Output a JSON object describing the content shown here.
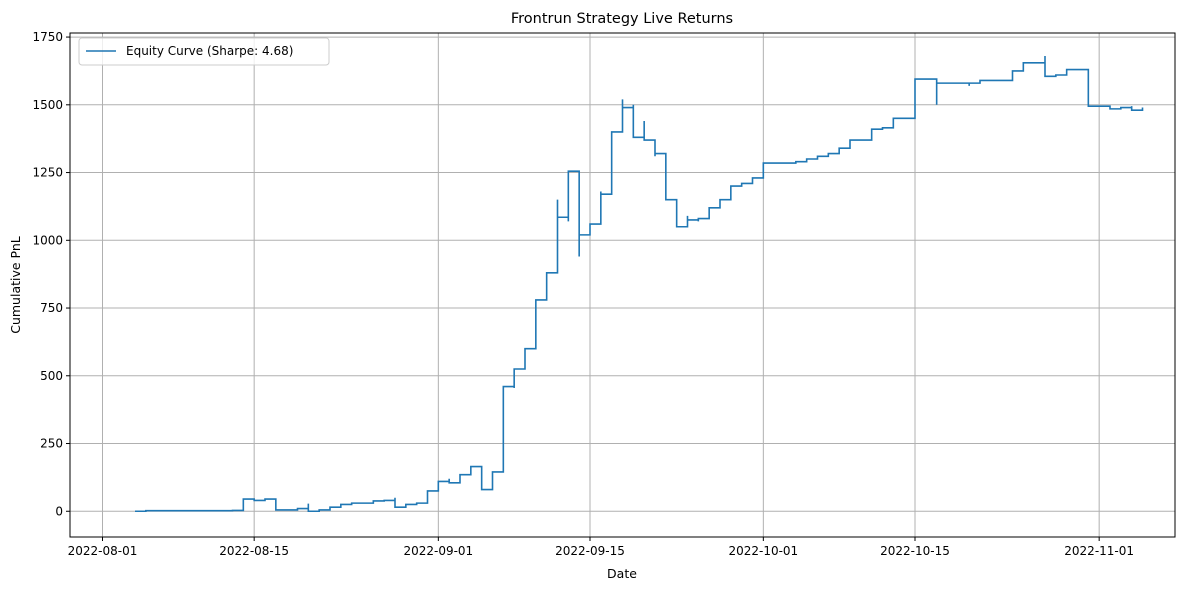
{
  "chart_data": {
    "type": "line",
    "title": "Frontrun Strategy Live Returns",
    "xlabel": "Date",
    "ylabel": "Cumulative PnL",
    "x_ticks": [
      "2022-08-01",
      "2022-08-15",
      "2022-09-01",
      "2022-09-15",
      "2022-10-01",
      "2022-10-15",
      "2022-11-01"
    ],
    "y_ticks": [
      0,
      250,
      500,
      750,
      1000,
      1250,
      1500,
      1750
    ],
    "xlim": [
      "2022-07-29",
      "2022-11-08"
    ],
    "ylim": [
      -95,
      1765
    ],
    "grid": true,
    "legend_position": "top-left",
    "colors": {
      "series": "#1f77b4",
      "grid": "#b0b0b0"
    },
    "series": [
      {
        "name": "Equity Curve (Sharpe: 4.68)",
        "points": [
          [
            "2022-08-04",
            0
          ],
          [
            "2022-08-05",
            2
          ],
          [
            "2022-08-08",
            2
          ],
          [
            "2022-08-11",
            2
          ],
          [
            "2022-08-13",
            3
          ],
          [
            "2022-08-14",
            15
          ],
          [
            "2022-08-14",
            45
          ],
          [
            "2022-08-15",
            40
          ],
          [
            "2022-08-16",
            45
          ],
          [
            "2022-08-17",
            35
          ],
          [
            "2022-08-17",
            5
          ],
          [
            "2022-08-19",
            10
          ],
          [
            "2022-08-20",
            28
          ],
          [
            "2022-08-20",
            0
          ],
          [
            "2022-08-21",
            5
          ],
          [
            "2022-08-22",
            15
          ],
          [
            "2022-08-23",
            25
          ],
          [
            "2022-08-24",
            30
          ],
          [
            "2022-08-25",
            30
          ],
          [
            "2022-08-26",
            38
          ],
          [
            "2022-08-27",
            40
          ],
          [
            "2022-08-28",
            50
          ],
          [
            "2022-08-28",
            15
          ],
          [
            "2022-08-29",
            25
          ],
          [
            "2022-08-30",
            30
          ],
          [
            "2022-08-31",
            75
          ],
          [
            "2022-09-01",
            110
          ],
          [
            "2022-09-02",
            120
          ],
          [
            "2022-09-02",
            105
          ],
          [
            "2022-09-03",
            135
          ],
          [
            "2022-09-04",
            165
          ],
          [
            "2022-09-05",
            165
          ],
          [
            "2022-09-05",
            80
          ],
          [
            "2022-09-06",
            145
          ],
          [
            "2022-09-07",
            250
          ],
          [
            "2022-09-07",
            430
          ],
          [
            "2022-09-07",
            460
          ],
          [
            "2022-09-08",
            455
          ],
          [
            "2022-09-08",
            525
          ],
          [
            "2022-09-09",
            530
          ],
          [
            "2022-09-09",
            600
          ],
          [
            "2022-09-10",
            615
          ],
          [
            "2022-09-10",
            730
          ],
          [
            "2022-09-10",
            780
          ],
          [
            "2022-09-11",
            870
          ],
          [
            "2022-09-11",
            880
          ],
          [
            "2022-09-12",
            1040
          ],
          [
            "2022-09-12",
            1070
          ],
          [
            "2022-09-12",
            1150
          ],
          [
            "2022-09-12",
            1085
          ],
          [
            "2022-09-13",
            1070
          ],
          [
            "2022-09-13",
            1240
          ],
          [
            "2022-09-13",
            1255
          ],
          [
            "2022-09-14",
            1250
          ],
          [
            "2022-09-14",
            940
          ],
          [
            "2022-09-14",
            990
          ],
          [
            "2022-09-14",
            1020
          ],
          [
            "2022-09-15",
            1030
          ],
          [
            "2022-09-15",
            1060
          ],
          [
            "2022-09-16",
            1110
          ],
          [
            "2022-09-16",
            1180
          ],
          [
            "2022-09-16",
            1170
          ],
          [
            "2022-09-17",
            1300
          ],
          [
            "2022-09-17",
            1250
          ],
          [
            "2022-09-17",
            1320
          ],
          [
            "2022-09-17",
            1400
          ],
          [
            "2022-09-18",
            1450
          ],
          [
            "2022-09-18",
            1520
          ],
          [
            "2022-09-18",
            1490
          ],
          [
            "2022-09-19",
            1480
          ],
          [
            "2022-09-19",
            1500
          ],
          [
            "2022-09-19",
            1490
          ],
          [
            "2022-09-19",
            1430
          ],
          [
            "2022-09-19",
            1380
          ],
          [
            "2022-09-20",
            1440
          ],
          [
            "2022-09-20",
            1420
          ],
          [
            "2022-09-20",
            1370
          ],
          [
            "2022-09-21",
            1330
          ],
          [
            "2022-09-21",
            1310
          ],
          [
            "2022-09-21",
            1320
          ],
          [
            "2022-09-22",
            1230
          ],
          [
            "2022-09-22",
            1200
          ],
          [
            "2022-09-22",
            1150
          ],
          [
            "2022-09-23",
            1120
          ],
          [
            "2022-09-23",
            1080
          ],
          [
            "2022-09-23",
            1050
          ],
          [
            "2022-09-24",
            1090
          ],
          [
            "2022-09-24",
            1075
          ],
          [
            "2022-09-25",
            1080
          ],
          [
            "2022-09-25",
            1070
          ],
          [
            "2022-09-25",
            1080
          ],
          [
            "2022-09-26",
            1120
          ],
          [
            "2022-09-27",
            1125
          ],
          [
            "2022-09-27",
            1150
          ],
          [
            "2022-09-28",
            1170
          ],
          [
            "2022-09-28",
            1200
          ],
          [
            "2022-09-29",
            1210
          ],
          [
            "2022-09-30",
            1230
          ],
          [
            "2022-10-01",
            1285
          ],
          [
            "2022-10-02",
            1285
          ],
          [
            "2022-10-03",
            1285
          ],
          [
            "2022-10-04",
            1290
          ],
          [
            "2022-10-05",
            1300
          ],
          [
            "2022-10-06",
            1310
          ],
          [
            "2022-10-07",
            1320
          ],
          [
            "2022-10-08",
            1340
          ],
          [
            "2022-10-09",
            1370
          ],
          [
            "2022-10-10",
            1370
          ],
          [
            "2022-10-11",
            1410
          ],
          [
            "2022-10-12",
            1415
          ],
          [
            "2022-10-13",
            1450
          ],
          [
            "2022-10-14",
            1450
          ],
          [
            "2022-10-15",
            1530
          ],
          [
            "2022-10-15",
            1595
          ],
          [
            "2022-10-16",
            1595
          ],
          [
            "2022-10-17",
            1580
          ],
          [
            "2022-10-17",
            1500
          ],
          [
            "2022-10-17",
            1580
          ],
          [
            "2022-10-18",
            1580
          ],
          [
            "2022-10-19",
            1580
          ],
          [
            "2022-10-20",
            1570
          ],
          [
            "2022-10-20",
            1580
          ],
          [
            "2022-10-21",
            1590
          ],
          [
            "2022-10-22",
            1590
          ],
          [
            "2022-10-23",
            1590
          ],
          [
            "2022-10-24",
            1625
          ],
          [
            "2022-10-25",
            1655
          ],
          [
            "2022-10-26",
            1655
          ],
          [
            "2022-10-27",
            1665
          ],
          [
            "2022-10-27",
            1680
          ],
          [
            "2022-10-27",
            1605
          ],
          [
            "2022-10-28",
            1610
          ],
          [
            "2022-10-29",
            1610
          ],
          [
            "2022-10-29",
            1630
          ],
          [
            "2022-10-30",
            1630
          ],
          [
            "2022-10-31",
            1495
          ],
          [
            "2022-11-01",
            1495
          ],
          [
            "2022-11-02",
            1495
          ],
          [
            "2022-11-02",
            1485
          ],
          [
            "2022-11-03",
            1490
          ],
          [
            "2022-11-04",
            1495
          ],
          [
            "2022-11-04",
            1480
          ],
          [
            "2022-11-05",
            1480
          ],
          [
            "2022-11-05",
            1490
          ]
        ]
      }
    ]
  }
}
